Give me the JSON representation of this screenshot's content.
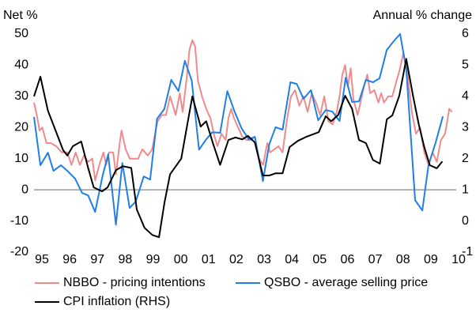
{
  "chart_data": {
    "type": "line",
    "y_label": "Net %",
    "y2_label": "Annual % change",
    "xlim": [
      1995,
      2010.2
    ],
    "xticks": [
      {
        "value": 1995,
        "label": "95"
      },
      {
        "value": 1996,
        "label": "96"
      },
      {
        "value": 1997,
        "label": "97"
      },
      {
        "value": 1998,
        "label": "98"
      },
      {
        "value": 1999,
        "label": "99"
      },
      {
        "value": 2000,
        "label": "00"
      },
      {
        "value": 2001,
        "label": "01"
      },
      {
        "value": 2002,
        "label": "02"
      },
      {
        "value": 2003,
        "label": "03"
      },
      {
        "value": 2004,
        "label": "04"
      },
      {
        "value": 2005,
        "label": "05"
      },
      {
        "value": 2006,
        "label": "06"
      },
      {
        "value": 2007,
        "label": "07"
      },
      {
        "value": 2008,
        "label": "08"
      },
      {
        "value": 2009,
        "label": "09"
      },
      {
        "value": 2010,
        "label": "10"
      }
    ],
    "ylim": [
      -20,
      50
    ],
    "yticks": [
      -20,
      -10,
      0,
      10,
      20,
      30,
      40,
      50
    ],
    "y2lim": [
      -1,
      6
    ],
    "y2ticks": [
      -1,
      0,
      1,
      2,
      3,
      4,
      5,
      6
    ],
    "series": [
      {
        "name": "NBBO - pricing intentions",
        "color": "#f08a8c",
        "x": [
          1995.0,
          1995.1,
          1995.2,
          1995.3,
          1995.45,
          1995.6,
          1995.8,
          1996.0,
          1996.2,
          1996.35,
          1996.5,
          1996.65,
          1996.8,
          1996.95,
          1997.1,
          1997.2,
          1997.35,
          1997.5,
          1997.6,
          1997.7,
          1997.85,
          1997.95,
          1998.1,
          1998.15,
          1998.3,
          1998.45,
          1998.6,
          1998.75,
          1998.9,
          1999.1,
          1999.25,
          1999.45,
          1999.6,
          1999.75,
          1999.9,
          2000.1,
          2000.25,
          2000.35,
          2000.5,
          2000.6,
          2000.7,
          2000.8,
          2000.9,
          2001.05,
          2001.2,
          2001.35,
          2001.5,
          2001.6,
          2001.75,
          2001.9,
          2002.0,
          2002.1,
          2002.2,
          2002.35,
          2002.5,
          2002.65,
          2002.8,
          2002.95,
          2003.1,
          2003.25,
          2003.4,
          2003.5,
          2003.65,
          2003.8,
          2003.95,
          2004.1,
          2004.25,
          2004.4,
          2004.55,
          2004.7,
          2004.85,
          2005.0,
          2005.15,
          2005.3,
          2005.45,
          2005.6,
          2005.75,
          2005.9,
          2006.0,
          2006.1,
          2006.2,
          2006.3,
          2006.4,
          2006.5,
          2006.65,
          2006.8,
          2006.9,
          2007.0,
          2007.1,
          2007.25,
          2007.4,
          2007.5,
          2007.6,
          2007.75,
          2007.9,
          2008.05,
          2008.15,
          2008.3,
          2008.45,
          2008.6,
          2008.75,
          2008.9,
          2009.05,
          2009.2,
          2009.35,
          2009.5,
          2009.65,
          2009.8,
          2009.95,
          2010.05
        ],
        "values": [
          28,
          24,
          19,
          20,
          15,
          15,
          14,
          12,
          12,
          8,
          12,
          8,
          11,
          9,
          10,
          3,
          8,
          12,
          8,
          12,
          12,
          5,
          16,
          19,
          13,
          10,
          10,
          10,
          13,
          11,
          13,
          22,
          24,
          24,
          30,
          24,
          31,
          25,
          36,
          45,
          48,
          46,
          35,
          30,
          26,
          23,
          17,
          14,
          18,
          16,
          23,
          26,
          23,
          20,
          17,
          16,
          16,
          17,
          10,
          8,
          15,
          12,
          13,
          14,
          12,
          22,
          30,
          32,
          27,
          30,
          25,
          31,
          28,
          24,
          30,
          22,
          21,
          25,
          30,
          37,
          40,
          33,
          39,
          29,
          24,
          30,
          34,
          37,
          31,
          32,
          28,
          31,
          28,
          30,
          30,
          35,
          38,
          44,
          37,
          25,
          18,
          20,
          12,
          8,
          12,
          9,
          16,
          18,
          26,
          25
        ]
      },
      {
        "name": "QSBO - average selling price",
        "color": "#1f7fe6",
        "x": [
          1995.0,
          1995.23,
          1995.5,
          1995.7,
          1995.97,
          1996.2,
          1996.48,
          1996.73,
          1996.95,
          1997.2,
          1997.47,
          1997.67,
          1997.95,
          1998.18,
          1998.44,
          1998.66,
          1998.95,
          1999.18,
          1999.43,
          1999.69,
          1999.94,
          2000.2,
          2000.43,
          2000.68,
          2000.94,
          2001.2,
          2001.42,
          2001.7,
          2001.96,
          2002.2,
          2002.47,
          2002.73,
          2002.95,
          2003.24,
          2003.47,
          2003.7,
          2003.95,
          2004.23,
          2004.46,
          2004.7,
          2004.97,
          2005.23,
          2005.5,
          2005.74,
          2006.0,
          2006.22,
          2006.45,
          2006.7,
          2006.95,
          2007.2,
          2007.44,
          2007.7,
          2007.93,
          2008.18,
          2008.4,
          2008.72,
          2008.98,
          2009.2,
          2009.46,
          2009.72
        ],
        "values": [
          23.4,
          7.9,
          11.9,
          6.1,
          7.9,
          6.1,
          3.6,
          -1.0,
          -1.8,
          -7.1,
          4.6,
          11.4,
          -11.2,
          8.6,
          -5.8,
          -3.8,
          4.3,
          3.3,
          22.8,
          25.9,
          35.3,
          31.7,
          41.4,
          35,
          12.9,
          16.2,
          18.5,
          18.3,
          31.7,
          25.6,
          19.8,
          16.2,
          17,
          2.8,
          14.7,
          20.1,
          19.3,
          34.5,
          34,
          29.2,
          32,
          22.3,
          25.6,
          25.1,
          22.1,
          36,
          28.2,
          28.4,
          35.3,
          34.5,
          35.8,
          44.9,
          47.5,
          50,
          38.8,
          -3.3,
          -6.6,
          7.9,
          15.2,
          23.6
        ]
      },
      {
        "name": "CPI inflation (RHS)",
        "color": "#000000",
        "axis": "y2",
        "x": [
          1995.0,
          1995.23,
          1995.5,
          1995.85,
          1996.05,
          1996.2,
          1996.4,
          1996.7,
          1996.95,
          1997.15,
          1997.45,
          1997.65,
          1997.95,
          1998.2,
          1998.5,
          1998.7,
          1998.98,
          1999.26,
          1999.5,
          1999.7,
          1999.9,
          2000.3,
          2000.5,
          2000.7,
          2001.0,
          2001.2,
          2001.45,
          2001.7,
          2002.0,
          2002.25,
          2002.5,
          2002.7,
          2002.95,
          2003.24,
          2003.47,
          2003.7,
          2003.95,
          2004.2,
          2004.5,
          2004.8,
          2005.1,
          2005.25,
          2005.5,
          2005.7,
          2005.95,
          2006.2,
          2006.45,
          2006.7,
          2006.95,
          2007.2,
          2007.45,
          2007.7,
          2007.9,
          2008.15,
          2008.4,
          2008.65,
          2008.85,
          2009.05,
          2009.25,
          2009.5,
          2009.7
        ],
        "values": [
          4.0,
          4.63,
          3.54,
          2.73,
          2.27,
          2.1,
          2.4,
          2.55,
          1.7,
          1.08,
          0.95,
          1.08,
          1.63,
          1.76,
          1.7,
          0.37,
          -0.22,
          -0.45,
          -0.52,
          0.6,
          1.5,
          2.0,
          3.0,
          4.0,
          3.03,
          3.2,
          2.47,
          1.8,
          2.6,
          2.68,
          2.62,
          2.73,
          2.52,
          1.46,
          1.46,
          1.53,
          1.53,
          2.37,
          2.57,
          2.7,
          2.8,
          2.85,
          3.36,
          3.2,
          3.4,
          4.02,
          3.6,
          2.6,
          2.5,
          1.96,
          1.84,
          3.26,
          3.39,
          4.02,
          5.2,
          4.0,
          3.1,
          2.37,
          1.79,
          1.69,
          1.91
        ]
      }
    ]
  }
}
